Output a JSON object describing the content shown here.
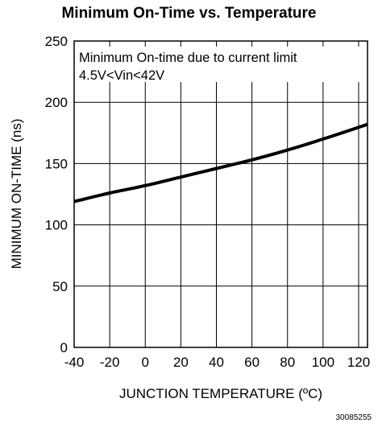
{
  "chart_data": {
    "type": "line",
    "title": "Minimum On-Time vs. Temperature",
    "xlabel": "JUNCTION TEMPERATURE (ºC)",
    "ylabel": "MINIMUM ON-TIME (ns)",
    "xlim": [
      -40,
      125
    ],
    "ylim": [
      0,
      250
    ],
    "x_ticks": [
      "-40",
      "-20",
      "0",
      "20",
      "40",
      "60",
      "80",
      "100",
      "120"
    ],
    "y_ticks": [
      "0",
      "50",
      "100",
      "150",
      "200",
      "250"
    ],
    "grid": true,
    "annotations": [
      "Minimum On-time due to current limit",
      "4.5V<Vin<42V"
    ],
    "series": [
      {
        "x": [
          -40,
          -20,
          0,
          20,
          40,
          60,
          80,
          100,
          125
        ],
        "y": [
          119,
          126,
          132,
          139,
          146,
          153,
          161,
          170,
          182
        ]
      }
    ]
  },
  "figure_id": "30085255"
}
